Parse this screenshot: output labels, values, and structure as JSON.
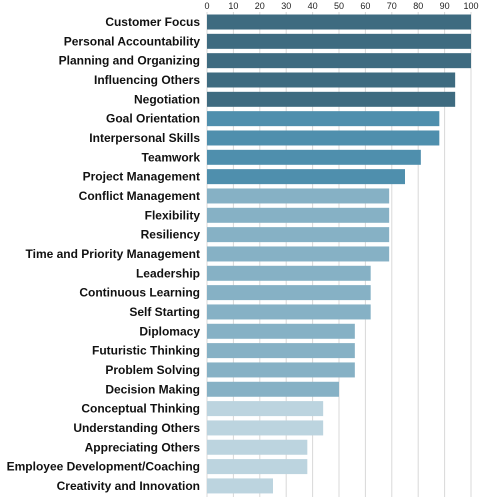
{
  "chart_data": {
    "type": "bar",
    "orientation": "horizontal",
    "xlim": [
      0,
      100
    ],
    "x_ticks": [
      "0",
      "10",
      "20",
      "30",
      "40",
      "50",
      "60",
      "70",
      "80",
      "90",
      "100"
    ],
    "grid": true,
    "categories": [
      "Customer Focus",
      "Personal Accountability",
      "Planning and Organizing",
      "Influencing Others",
      "Negotiation",
      "Goal Orientation",
      "Interpersonal Skills",
      "Teamwork",
      "Project Management",
      "Conflict Management",
      "Flexibility",
      "Resiliency",
      "Time and Priority Management",
      "Leadership",
      "Continuous Learning",
      "Self Starting",
      "Diplomacy",
      "Futuristic Thinking",
      "Problem Solving",
      "Decision Making",
      "Conceptual Thinking",
      "Understanding Others",
      "Appreciating Others",
      "Employee Development/Coaching",
      "Creativity and Innovation"
    ],
    "values": [
      100,
      100,
      100,
      94,
      94,
      88,
      88,
      81,
      75,
      69,
      69,
      69,
      69,
      62,
      62,
      62,
      56,
      56,
      56,
      50,
      44,
      44,
      38,
      38,
      25
    ],
    "bar_colors": [
      "#3e6b80",
      "#3e6b80",
      "#3e6b80",
      "#3e6b80",
      "#3e6b80",
      "#4f8fad",
      "#4f8fad",
      "#4f8fad",
      "#4f8fad",
      "#86b1c5",
      "#86b1c5",
      "#86b1c5",
      "#86b1c5",
      "#86b1c5",
      "#86b1c5",
      "#86b1c5",
      "#86b1c5",
      "#86b1c5",
      "#86b1c5",
      "#86b1c5",
      "#bcd4df",
      "#bcd4df",
      "#bcd4df",
      "#bcd4df",
      "#bcd4df"
    ],
    "gridline_color": "#d8d8d8"
  }
}
